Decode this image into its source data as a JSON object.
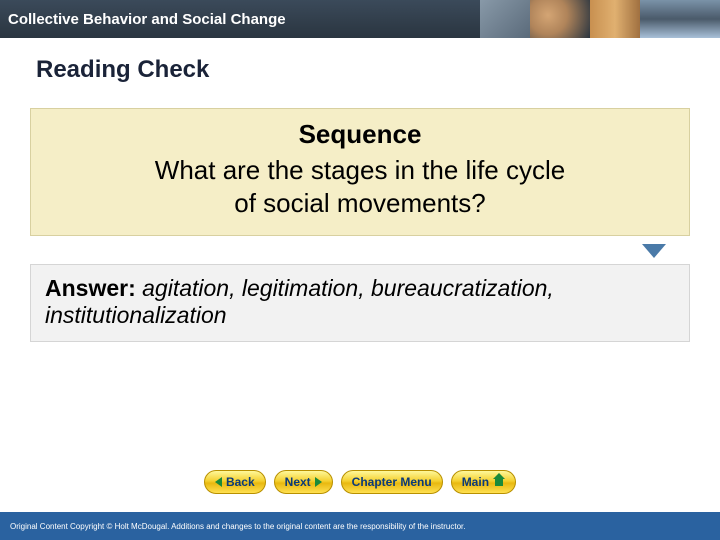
{
  "header": {
    "title": "Collective Behavior and Social Change"
  },
  "slide": {
    "heading": "Reading Check",
    "sequence_label": "Sequence",
    "question_line1": "What are the stages in the life cycle",
    "question_line2": "of social movements?",
    "answer_label": "Answer:",
    "answer_text": " agitation, legitimation, bureaucratization, institutionalization"
  },
  "nav": {
    "back": "< Back",
    "next": "Next >",
    "chapter": "Chapter Menu",
    "main": "Main"
  },
  "footer": {
    "copyright": "Original Content Copyright © Holt McDougal. Additions and changes to the original content are the responsibility of the instructor."
  },
  "colors": {
    "header_bg": "#2a3540",
    "question_bg": "#f5eec7",
    "answer_bg": "#f2f2f2",
    "nav_btn_text": "#0a3a7a",
    "footer_bg": "#2a62a0",
    "arrow_color": "#4a7aa8"
  }
}
